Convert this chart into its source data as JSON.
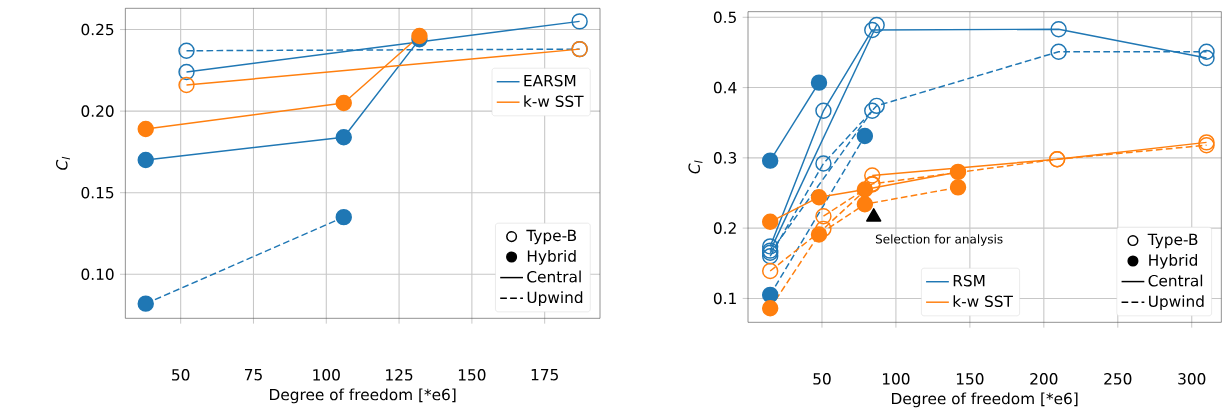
{
  "chart_data": [
    {
      "type": "line",
      "legend": "right",
      "xlabel": "Degree of freedom [*e6]",
      "ylabel": "C$_{l}$",
      "xlim": [
        31,
        194
      ],
      "ylim": [
        0.073,
        0.263
      ],
      "xticks": [
        50,
        75,
        100,
        125,
        150,
        175
      ],
      "yticks": [
        {
          "value": 0.1,
          "label": "0.10"
        },
        {
          "value": 0.15,
          "label": "0.15"
        },
        {
          "value": 0.2,
          "label": "0.20"
        },
        {
          "value": 0.25,
          "label": "0.25"
        }
      ],
      "grid": true,
      "series": [
        {
          "color": "#1f77b4",
          "line_style": "solid",
          "marker": "circle",
          "x": [
            38,
            106,
            132
          ],
          "values": [
            0.17,
            0.184,
            0.244
          ]
        },
        {
          "color": "#1f77b4",
          "line_style": "solid",
          "marker": "open circle",
          "x": [
            52,
            187
          ],
          "values": [
            0.224,
            0.255
          ]
        },
        {
          "color": "#1f77b4",
          "line_style": "dashed",
          "marker": "open circle",
          "x": [
            52,
            187
          ],
          "values": [
            0.237,
            0.238
          ]
        },
        {
          "color": "#1f77b4",
          "line_style": "dashed",
          "marker": "circle",
          "x": [
            38,
            106
          ],
          "values": [
            0.082,
            0.135
          ]
        },
        {
          "color": "#ff7f0e",
          "line_style": "solid",
          "marker": "open circle",
          "x": [
            52,
            187
          ],
          "values": [
            0.216,
            0.238
          ]
        },
        {
          "color": "#ff7f0e",
          "line_style": "solid",
          "marker": "circle",
          "x": [
            38,
            106,
            132
          ],
          "values": [
            0.189,
            0.205,
            0.246
          ]
        },
        {
          "name": "EARSM",
          "color": "#1f77b4",
          "line_style": "solid",
          "marker": "none"
        },
        {
          "name": "k-w SST",
          "color": "#ff7f0e",
          "line_style": "solid",
          "marker": "none"
        },
        {
          "type": "scatter",
          "name": "Type-B",
          "color": "#000000",
          "marker": "open circle"
        },
        {
          "type": "scatter",
          "name": "Hybrid",
          "color": "#000000",
          "marker": "circle"
        },
        {
          "name": "Central",
          "color": "#000000",
          "line_style": "solid",
          "marker": "none"
        },
        {
          "name": "Upwind",
          "color": "#000000",
          "line_style": "dashed",
          "marker": "none"
        }
      ]
    },
    {
      "type": "line",
      "legend": "bottom",
      "xlabel": "Degree of freedom [*e6]",
      "ylabel": "C$_{l}$",
      "xlim": [
        0,
        320
      ],
      "ylim": [
        0.066,
        0.508
      ],
      "xticks": [
        50,
        100,
        150,
        200,
        250,
        300
      ],
      "yticks": [
        0.1,
        0.2,
        0.3,
        0.4,
        0.5
      ],
      "grid": true,
      "annotations": [
        {
          "text": "Selection for analysis",
          "x": 85,
          "y": 0.216
        }
      ],
      "series": [
        {
          "color": "#1f77b4",
          "line_style": "solid",
          "marker": "circle",
          "x": [
            15,
            48
          ],
          "values": [
            0.296,
            0.407
          ]
        },
        {
          "color": "#1f77b4",
          "line_style": "solid",
          "marker": "open circle",
          "x": [
            15,
            51,
            84,
            210,
            310
          ],
          "values": [
            0.174,
            0.367,
            0.482,
            0.483,
            0.442
          ]
        },
        {
          "color": "#1f77b4",
          "line_style": "solid",
          "marker": "open circle",
          "x": [
            15,
            87
          ],
          "values": [
            0.168,
            0.489
          ]
        },
        {
          "color": "#1f77b4",
          "line_style": "dashed",
          "marker": "open circle",
          "x": [
            15,
            51,
            87,
            210,
            310
          ],
          "values": [
            0.16,
            0.292,
            0.374,
            0.451,
            0.451
          ]
        },
        {
          "color": "#1f77b4",
          "line_style": "dashed",
          "marker": "open circle",
          "x": [
            15,
            84
          ],
          "values": [
            0.165,
            0.367
          ]
        },
        {
          "color": "#1f77b4",
          "line_style": "dashed",
          "marker": "circle",
          "x": [
            15,
            79
          ],
          "values": [
            0.105,
            0.331
          ]
        },
        {
          "color": "#ff7f0e",
          "line_style": "solid",
          "marker": "circle",
          "x": [
            15,
            48,
            79,
            142
          ],
          "values": [
            0.209,
            0.244,
            0.255,
            0.28
          ]
        },
        {
          "color": "#ff7f0e",
          "line_style": "solid",
          "marker": "open circle",
          "x": [
            84,
            209,
            310
          ],
          "values": [
            0.275,
            0.298,
            0.322
          ]
        },
        {
          "color": "#ff7f0e",
          "line_style": "dashed",
          "marker": "circle",
          "x": [
            15,
            48,
            79,
            142
          ],
          "values": [
            0.086,
            0.191,
            0.234,
            0.258
          ]
        },
        {
          "color": "#ff7f0e",
          "line_style": "dashed",
          "marker": "open circle",
          "x": [
            15,
            51,
            84,
            209,
            310
          ],
          "values": [
            0.139,
            0.199,
            0.263,
            0.298,
            0.318
          ]
        },
        {
          "color": "#ff7f0e",
          "line_style": "dashed",
          "marker": "open circle",
          "x": [
            51,
            84
          ],
          "values": [
            0.217,
            0.262
          ]
        },
        {
          "type": "scatter",
          "color": "#000000",
          "marker": "triangle",
          "x": [
            85
          ],
          "values": [
            0.216
          ]
        },
        {
          "name": "RSM",
          "color": "#1f77b4",
          "line_style": "solid",
          "marker": "none"
        },
        {
          "name": "k-w SST",
          "color": "#ff7f0e",
          "line_style": "solid",
          "marker": "none"
        },
        {
          "type": "scatter",
          "name": "Type-B",
          "color": "#000000",
          "marker": "open circle"
        },
        {
          "type": "scatter",
          "name": "Hybrid",
          "color": "#000000",
          "marker": "circle"
        },
        {
          "name": "Central",
          "color": "#000000",
          "line_style": "solid",
          "marker": "none"
        },
        {
          "name": "Upwind",
          "color": "#000000",
          "line_style": "dashed",
          "marker": "none"
        }
      ]
    }
  ]
}
